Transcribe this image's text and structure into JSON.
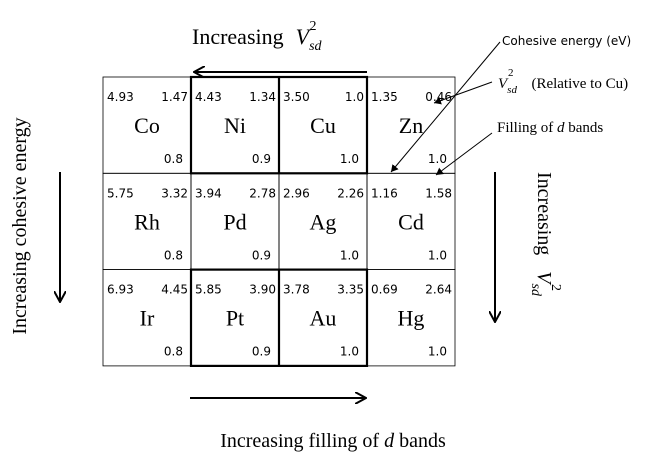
{
  "top_label": {
    "text": "Increasing",
    "symbol": "V",
    "subscript": "sd",
    "superscript": "2"
  },
  "right_label": {
    "text": "Increasing",
    "symbol": "V",
    "subscript": "sd",
    "superscript": "2"
  },
  "left_label": "Increasing cohesive energy",
  "bottom_label": {
    "before": "Increasing filling of ",
    "italic": "d",
    "after": " bands"
  },
  "legend": {
    "cohesive": "Cohesive energy (eV)",
    "vsd": {
      "symbol": "V",
      "subscript": "sd",
      "superscript": "2",
      "text": "(Relative to Cu)"
    },
    "filling": {
      "before": "Filling of ",
      "italic": "d",
      "after": " bands"
    }
  },
  "table": {
    "rows": [
      [
        {
          "symbol": "Co",
          "cohesive": "4.93",
          "vsd": "1.47",
          "filling": "0.8"
        },
        {
          "symbol": "Ni",
          "cohesive": "4.43",
          "vsd": "1.34",
          "filling": "0.9"
        },
        {
          "symbol": "Cu",
          "cohesive": "3.50",
          "vsd": "1.0",
          "filling": "1.0"
        },
        {
          "symbol": "Zn",
          "cohesive": "1.35",
          "vsd": "0.46",
          "filling": "1.0"
        }
      ],
      [
        {
          "symbol": "Rh",
          "cohesive": "5.75",
          "vsd": "3.32",
          "filling": "0.8"
        },
        {
          "symbol": "Pd",
          "cohesive": "3.94",
          "vsd": "2.78",
          "filling": "0.9"
        },
        {
          "symbol": "Ag",
          "cohesive": "2.96",
          "vsd": "2.26",
          "filling": "1.0"
        },
        {
          "symbol": "Cd",
          "cohesive": "1.16",
          "vsd": "1.58",
          "filling": "1.0"
        }
      ],
      [
        {
          "symbol": "Ir",
          "cohesive": "6.93",
          "vsd": "4.45",
          "filling": "0.8"
        },
        {
          "symbol": "Pt",
          "cohesive": "5.85",
          "vsd": "3.90",
          "filling": "0.9"
        },
        {
          "symbol": "Au",
          "cohesive": "3.78",
          "vsd": "3.35",
          "filling": "1.0"
        },
        {
          "symbol": "Hg",
          "cohesive": "0.69",
          "vsd": "2.64",
          "filling": "1.0"
        }
      ]
    ]
  }
}
